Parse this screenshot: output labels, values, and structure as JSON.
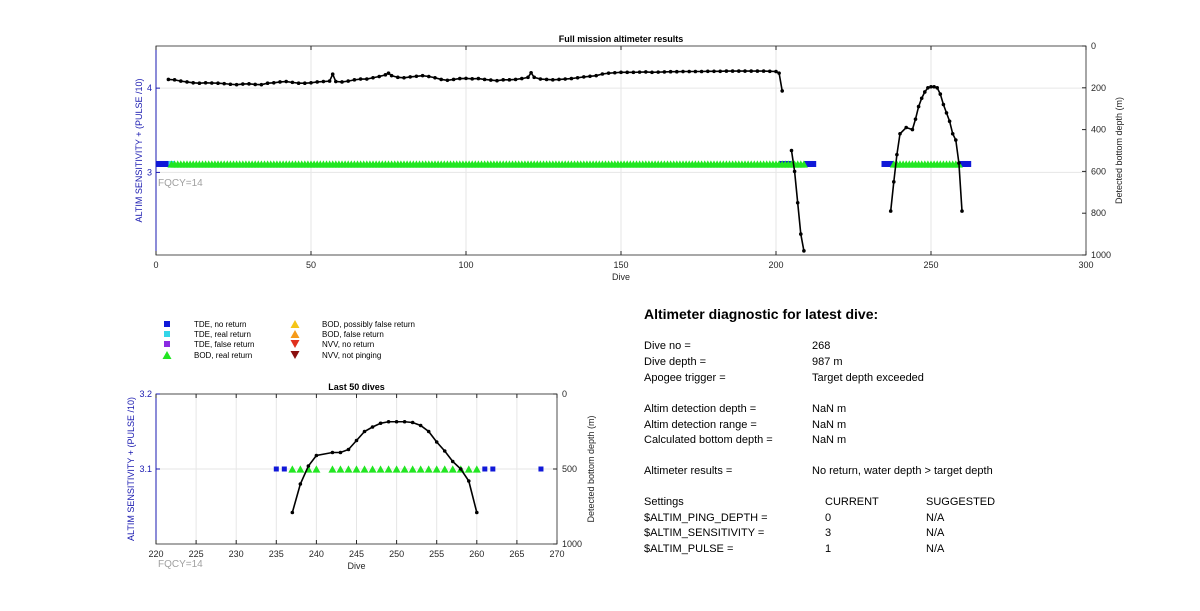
{
  "colors": {
    "tde_no_return": "#1018d8",
    "tde_real_return": "#33d6e8",
    "tde_false_return": "#8a2be2",
    "bod_real_return": "#22e622",
    "bod_possibly_false": "#f5c518",
    "bod_false": "#f59b1a",
    "nvv_no_return": "#e0301e",
    "nvv_not_pinging": "#8b1010",
    "depth_line": "#000000",
    "left_axis": "#1a1ab0",
    "fqcy_text": "#a0a0a0"
  },
  "legend": {
    "items": [
      {
        "label": "TDE, no return",
        "marker": "square",
        "color": "#1018d8"
      },
      {
        "label": "TDE, real return",
        "marker": "square",
        "color": "#33d6e8"
      },
      {
        "label": "TDE, false return",
        "marker": "square",
        "color": "#8a2be2"
      },
      {
        "label": "BOD, real return",
        "marker": "triangle-up",
        "color": "#22e622"
      },
      {
        "label": "BOD, possibly false return",
        "marker": "triangle-up",
        "color": "#f5c518"
      },
      {
        "label": "BOD, false return",
        "marker": "triangle-up",
        "color": "#f59b1a"
      },
      {
        "label": "NVV, no return",
        "marker": "triangle-down",
        "color": "#e0301e"
      },
      {
        "label": "NVV, not pinging",
        "marker": "triangle-down",
        "color": "#8b1010"
      }
    ]
  },
  "chart_data": [
    {
      "id": "full_mission",
      "type": "scatter",
      "title": "Full mission altimeter results",
      "xlabel": "Dive",
      "ylabel_left": "ALTIM SENSITIVITY + (PULSE /10)",
      "ylabel_right": "Detected bottom depth (m)",
      "annotation": "FQCY=14",
      "xlim": [
        0,
        300
      ],
      "xticks": [
        0,
        50,
        100,
        150,
        200,
        250,
        300
      ],
      "ylim_left": [
        2.02,
        4.5
      ],
      "yticks_left": [
        3,
        4
      ],
      "ylim_right": [
        0,
        1000
      ],
      "right_reversed": true,
      "yticks_right": [
        0,
        200,
        400,
        600,
        800,
        1000
      ],
      "grid": true,
      "sensitivity_value": 3.1,
      "series": [
        {
          "name": "TDE, no return",
          "x": [
            1,
            2,
            3,
            4,
            202,
            203,
            204,
            210,
            211,
            212,
            235,
            236,
            237,
            260,
            261,
            262
          ]
        },
        {
          "name": "TDE, real return",
          "x": [
            5
          ]
        },
        {
          "name": "BOD, real return",
          "x_range": [
            5,
            209
          ],
          "x_extra": [
            238,
            259
          ]
        },
        {
          "name": "Detected bottom depth",
          "segments": [
            {
              "x": [
                4,
                6,
                8,
                10,
                12,
                14,
                16,
                18,
                20,
                22,
                24,
                26,
                28,
                30,
                32,
                34,
                36,
                38,
                40,
                42,
                44,
                46,
                48,
                50,
                52,
                54,
                56,
                57,
                58,
                60,
                62,
                64,
                66,
                68,
                70,
                72,
                74,
                75,
                76,
                78,
                80,
                82,
                84,
                86,
                88,
                90,
                92,
                94,
                96,
                98,
                100,
                102,
                104,
                106,
                108,
                110,
                112,
                114,
                116,
                118,
                120,
                121,
                122,
                124,
                126,
                128,
                130,
                132,
                134,
                136,
                138,
                140,
                142,
                144,
                146,
                148,
                150,
                152,
                154,
                156,
                158,
                160,
                162,
                164,
                166,
                168,
                170,
                172,
                174,
                176,
                178,
                180,
                182,
                184,
                186,
                188,
                190,
                192,
                194,
                196,
                198,
                200,
                201,
                202
              ],
              "y": [
                160,
                162,
                168,
                172,
                176,
                178,
                176,
                177,
                178,
                180,
                183,
                185,
                182,
                181,
                184,
                185,
                178,
                176,
                172,
                170,
                174,
                178,
                178,
                176,
                172,
                170,
                168,
                135,
                170,
                172,
                168,
                162,
                158,
                158,
                152,
                146,
                138,
                130,
                142,
                150,
                152,
                148,
                145,
                142,
                146,
                152,
                160,
                164,
                160,
                156,
                155,
                157,
                156,
                160,
                163,
                166,
                162,
                162,
                160,
                156,
                150,
                128,
                150,
                158,
                160,
                162,
                160,
                158,
                156,
                152,
                148,
                145,
                142,
                134,
                130,
                128,
                126,
                126,
                126,
                125,
                124,
                126,
                125,
                124,
                123,
                123,
                122,
                122,
                122,
                122,
                121,
                121,
                121,
                120,
                120,
                120,
                120,
                120,
                120,
                120,
                121,
                122,
                130,
                215
              ]
            },
            {
              "x": [
                205,
                206,
                207,
                208,
                209
              ],
              "y": [
                500,
                600,
                750,
                900,
                980
              ]
            },
            {
              "x": [
                237,
                238,
                239,
                240,
                242,
                244,
                245,
                246,
                247,
                248,
                249,
                250,
                251,
                252,
                253,
                254,
                255,
                256,
                257,
                258,
                259,
                260
              ],
              "y": [
                790,
                650,
                520,
                420,
                390,
                400,
                350,
                290,
                250,
                220,
                200,
                195,
                195,
                200,
                230,
                280,
                320,
                360,
                420,
                450,
                560,
                790
              ]
            }
          ]
        }
      ]
    },
    {
      "id": "last_50",
      "type": "scatter",
      "title": "Last 50 dives",
      "xlabel": "Dive",
      "ylabel_left": "ALTIM SENSITIVITY + (PULSE /10)",
      "ylabel_right": "Detected bottom depth (m)",
      "annotation": "FQCY=14",
      "xlim": [
        220,
        270
      ],
      "xticks": [
        220,
        225,
        230,
        235,
        240,
        245,
        250,
        255,
        260,
        265,
        270
      ],
      "ylim_left": [
        3.0,
        3.2
      ],
      "yticks_left": [
        3.1,
        3.2
      ],
      "ylim_right": [
        0,
        1000
      ],
      "right_reversed": true,
      "yticks_right": [
        0,
        500,
        1000
      ],
      "grid": true,
      "sensitivity_value": 3.1,
      "series": [
        {
          "name": "TDE, no return",
          "x": [
            235,
            236,
            261,
            262,
            268
          ]
        },
        {
          "name": "BOD, real return",
          "x": [
            237,
            238,
            239,
            240,
            242,
            243,
            244,
            245,
            246,
            247,
            248,
            249,
            250,
            251,
            252,
            253,
            254,
            255,
            256,
            257,
            258,
            259,
            260
          ]
        },
        {
          "name": "Detected bottom depth",
          "segments": [
            {
              "x": [
                237,
                238,
                239,
                240,
                242,
                243,
                244,
                245,
                246,
                247,
                248,
                249,
                250,
                251,
                252,
                253,
                254,
                255,
                256,
                257,
                258,
                259,
                260
              ],
              "y": [
                790,
                600,
                480,
                410,
                390,
                390,
                370,
                310,
                250,
                220,
                195,
                185,
                185,
                185,
                190,
                210,
                250,
                320,
                380,
                450,
                500,
                580,
                790
              ]
            }
          ]
        }
      ]
    }
  ],
  "diagnostic": {
    "heading": "Altimeter diagnostic for latest dive:",
    "dive_no": {
      "label": "Dive no =",
      "value": "268"
    },
    "dive_depth": {
      "label": "Dive depth =",
      "value": "987 m"
    },
    "apogee": {
      "label": "Apogee trigger =",
      "value": "Target depth exceeded"
    },
    "detect_depth": {
      "label": "Altim detection depth =",
      "value": "NaN m"
    },
    "detect_range": {
      "label": "Altim detection range =",
      "value": "NaN m"
    },
    "calc_bottom": {
      "label": "Calculated bottom depth =",
      "value": "NaN m"
    },
    "results": {
      "label": "Altimeter results =",
      "value": "No return, water depth > target depth"
    },
    "settings": {
      "label": "Settings",
      "current": "CURRENT",
      "suggested": "SUGGESTED"
    },
    "ping_depth": {
      "label": "$ALTIM_PING_DEPTH =",
      "current": "0",
      "suggested": "N/A"
    },
    "sensitivity": {
      "label": "$ALTIM_SENSITIVITY =",
      "current": "3",
      "suggested": "N/A"
    },
    "pulse": {
      "label": "$ALTIM_PULSE =",
      "current": "1",
      "suggested": "N/A"
    }
  }
}
